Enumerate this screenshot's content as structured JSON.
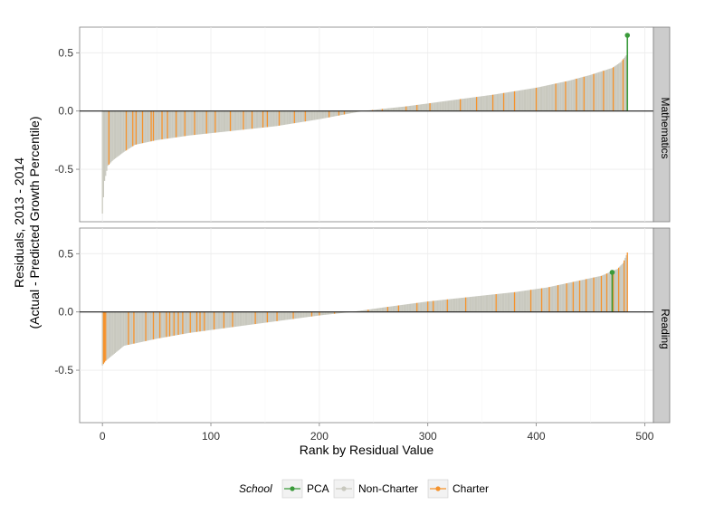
{
  "chart_data": {
    "type": "bar",
    "title": "",
    "xlabel": "Rank by Residual Value",
    "ylabel_lines": [
      "Residuals, 2013 - 2014",
      "(Actual - Predicted Growth Percentile)"
    ],
    "xlim": [
      -21,
      508
    ],
    "ylim": [
      -0.95,
      0.72
    ],
    "xticks": [
      0,
      100,
      200,
      300,
      400,
      500
    ],
    "xtick_labels": [
      "0",
      "100",
      "200",
      "300",
      "400",
      "500"
    ],
    "yticks": [
      -0.5,
      0.0,
      0.5
    ],
    "ytick_labels": [
      "-0.5",
      "0.0",
      "0.5"
    ],
    "grid": true,
    "legend": {
      "title": "School",
      "position": "bottom",
      "items": [
        {
          "label": "PCA",
          "color": "#3a9a3a"
        },
        {
          "label": "Non-Charter",
          "color": "#c8c8be"
        },
        {
          "label": "Charter",
          "color": "#f5922b"
        }
      ]
    },
    "panels": [
      {
        "strip": "Mathematics",
        "n_schools": 485,
        "min_residual": -0.88,
        "max_residual": 0.65,
        "curve_rank": [
          0,
          2,
          5,
          10,
          20,
          30,
          50,
          80,
          120,
          160,
          200,
          240,
          280,
          320,
          360,
          400,
          430,
          450,
          470,
          478,
          483,
          484
        ],
        "curve_value": [
          -0.88,
          -0.6,
          -0.47,
          -0.42,
          -0.35,
          -0.29,
          -0.25,
          -0.21,
          -0.17,
          -0.13,
          -0.07,
          0.0,
          0.04,
          0.09,
          0.14,
          0.2,
          0.26,
          0.31,
          0.37,
          0.42,
          0.48,
          0.65
        ],
        "pca": {
          "rank": 484,
          "value": 0.65
        },
        "charter_ranks": [
          6,
          22,
          28,
          31,
          37,
          45,
          47,
          55,
          60,
          68,
          76,
          85,
          96,
          104,
          118,
          130,
          138,
          148,
          152,
          163,
          177,
          187,
          209,
          218,
          223,
          249,
          258,
          280,
          290,
          302,
          330,
          345,
          360,
          370,
          380,
          400,
          418,
          427,
          437,
          444,
          453,
          462,
          471,
          480
        ]
      },
      {
        "strip": "Reading",
        "n_schools": 485,
        "min_residual": -0.46,
        "max_residual": 0.51,
        "curve_rank": [
          0,
          3,
          20,
          50,
          80,
          120,
          160,
          200,
          230,
          260,
          300,
          340,
          380,
          410,
          440,
          460,
          475,
          480,
          484
        ],
        "curve_value": [
          -0.46,
          -0.42,
          -0.29,
          -0.23,
          -0.18,
          -0.13,
          -0.08,
          -0.03,
          0.0,
          0.04,
          0.09,
          0.13,
          0.17,
          0.21,
          0.27,
          0.31,
          0.37,
          0.42,
          0.51
        ],
        "pca": {
          "rank": 470,
          "value": 0.34
        },
        "charter_ranks": [
          1,
          2,
          3,
          24,
          29,
          40,
          47,
          53,
          59,
          62,
          66,
          70,
          74,
          81,
          87,
          90,
          94,
          103,
          112,
          120,
          141,
          152,
          161,
          176,
          193,
          200,
          214,
          245,
          263,
          273,
          290,
          300,
          305,
          318,
          335,
          363,
          380,
          395,
          405,
          412,
          420,
          428,
          434,
          440,
          446,
          453,
          460,
          465,
          471,
          476,
          481,
          484
        ]
      }
    ]
  }
}
